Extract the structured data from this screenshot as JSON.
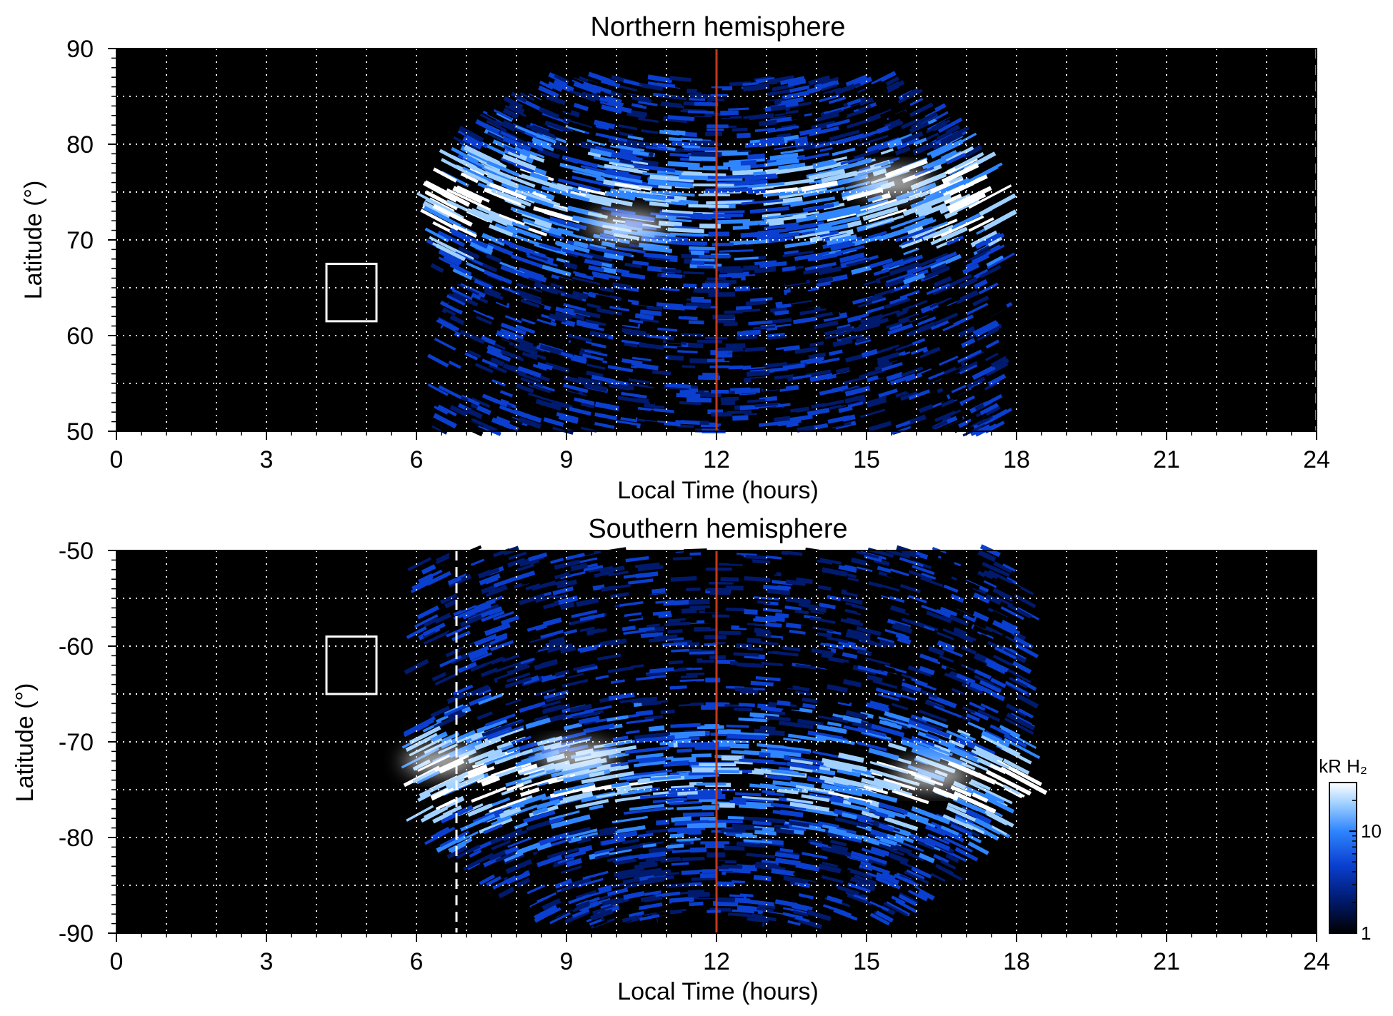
{
  "chart_data": [
    {
      "type": "heatmap",
      "title": "Northern hemisphere",
      "xlabel": "Local Time (hours)",
      "ylabel": "Latitude (°)",
      "xlim": [
        0,
        24
      ],
      "ylim": [
        50,
        90
      ],
      "x_ticks": [
        "0",
        "3",
        "6",
        "9",
        "12",
        "15",
        "18",
        "21",
        "24"
      ],
      "y_ticks": [
        "50",
        "60",
        "70",
        "80",
        "90"
      ],
      "grid": true,
      "colormap": [
        "#000000",
        "#001a6e",
        "#0a3fd0",
        "#2f86ff",
        "#9fd0ff",
        "#ffffff"
      ],
      "emission": {
        "lt_start": 6.4,
        "lt_end": 17.8,
        "lat_top": 87,
        "lat_bottom": 50
      },
      "auroral_oval": {
        "lat_peak": 74,
        "bright_spots": [
          {
            "lt": 10.2,
            "lat": 71.5
          },
          {
            "lt": 15.5,
            "lat": 76
          }
        ]
      },
      "reference_lines": [
        {
          "type": "vertical",
          "x": 12,
          "color": "#c1391e",
          "style": "solid"
        },
        {
          "type": "vertical",
          "x": 24,
          "color": "#ffffff",
          "style": "dashed"
        }
      ],
      "box": {
        "x": [
          4.2,
          5.2
        ],
        "y": [
          61.5,
          67.5
        ],
        "color": "#ffffff"
      }
    },
    {
      "type": "heatmap",
      "title": "Southern hemisphere",
      "xlabel": "Local Time (hours)",
      "ylabel": "Latitude (°)",
      "xlim": [
        0,
        24
      ],
      "ylim": [
        -90,
        -50
      ],
      "x_ticks": [
        "0",
        "3",
        "6",
        "9",
        "12",
        "15",
        "18",
        "21",
        "24"
      ],
      "y_ticks": [
        "-50",
        "-60",
        "-70",
        "-80",
        "-90"
      ],
      "grid": true,
      "colormap": [
        "#000000",
        "#001a6e",
        "#0a3fd0",
        "#2f86ff",
        "#9fd0ff",
        "#ffffff"
      ],
      "emission": {
        "lt_start": 6.0,
        "lt_end": 18.5,
        "lat_top": -50,
        "lat_bottom": -89
      },
      "auroral_oval": {
        "lat_peak": -74,
        "bright_spots": [
          {
            "lt": 9.2,
            "lat": -71.5
          },
          {
            "lt": 16.3,
            "lat": -73.5
          },
          {
            "lt": 6.5,
            "lat": -72
          }
        ]
      },
      "reference_lines": [
        {
          "type": "vertical",
          "x": 12,
          "color": "#c1391e",
          "style": "solid"
        },
        {
          "type": "vertical",
          "x": 6.8,
          "color": "#ffffff",
          "style": "dashed"
        }
      ],
      "box": {
        "x": [
          4.2,
          5.2
        ],
        "y": [
          -65,
          -59
        ],
        "color": "#ffffff"
      }
    }
  ],
  "colorbar": {
    "label": "kR H₂",
    "scale": "log",
    "range": [
      1,
      30
    ],
    "tick_labels": [
      "1",
      "10"
    ],
    "tick_values": [
      1,
      10
    ]
  }
}
